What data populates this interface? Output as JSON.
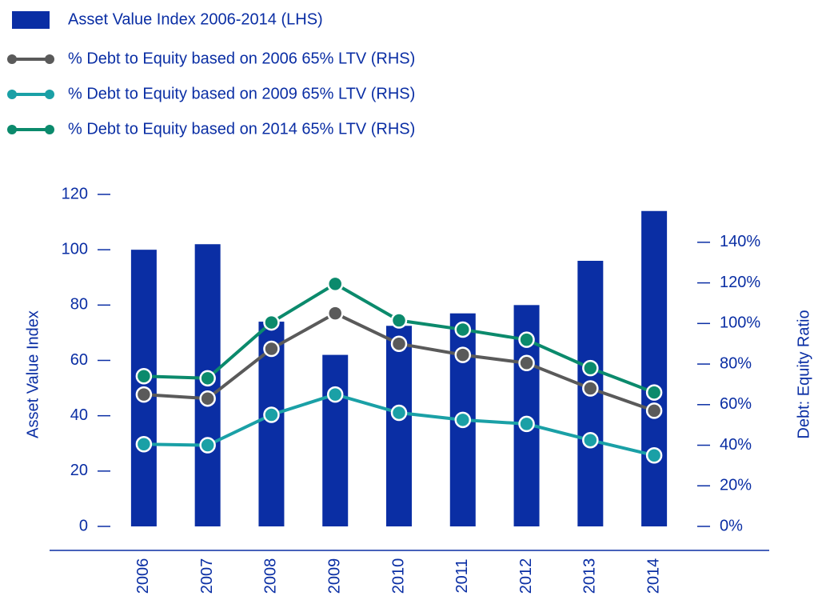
{
  "chart_data": {
    "type": "bar_line",
    "categories": [
      "2006",
      "2007",
      "2008",
      "2009",
      "2010",
      "2011",
      "2012",
      "2013",
      "2014"
    ],
    "series": [
      {
        "name": "Asset Value Index 2006-2014 (LHS)",
        "type": "bar",
        "color": "#0a2ea4",
        "axis": "y",
        "values": [
          100,
          102,
          74,
          62,
          72.5,
          77,
          80,
          96,
          114
        ]
      },
      {
        "name": "% Debt to Equity based on 2006 65% LTV (RHS)",
        "type": "line",
        "color": "#5a5a5a",
        "axis": "y2",
        "values": [
          65,
          63,
          87.5,
          105,
          90,
          84.5,
          80.5,
          68,
          57
        ]
      },
      {
        "name": "% Debt to Equity based on 2009 65% LTV (RHS)",
        "type": "line",
        "color": "#1aa0a6",
        "axis": "y2",
        "values": [
          40.5,
          40,
          55,
          65,
          56,
          52.5,
          50.5,
          42.5,
          35
        ]
      },
      {
        "name": "% Debt to Equity based on 2014 65% LTV (RHS)",
        "type": "line",
        "color": "#0b8a6c",
        "axis": "y2",
        "values": [
          74,
          73,
          100.5,
          119.5,
          101.5,
          97,
          92,
          78,
          66
        ]
      }
    ],
    "ylabel": "Asset Value Index",
    "y2label": "Debt: Equity Ratio",
    "ylim": [
      0,
      120
    ],
    "yticks": [
      0,
      20,
      40,
      60,
      80,
      100,
      120
    ],
    "y2lim": [
      0,
      163.6
    ],
    "y2ticks": [
      {
        "value": 0,
        "label": "0%"
      },
      {
        "value": 20,
        "label": "20%"
      },
      {
        "value": 40,
        "label": "40%"
      },
      {
        "value": 60,
        "label": "60%"
      },
      {
        "value": 80,
        "label": "80%"
      },
      {
        "value": 100,
        "label": "100%"
      },
      {
        "value": 120,
        "label": "120%"
      },
      {
        "value": 140,
        "label": "140%"
      }
    ],
    "legend": "top-left",
    "grid": false
  }
}
